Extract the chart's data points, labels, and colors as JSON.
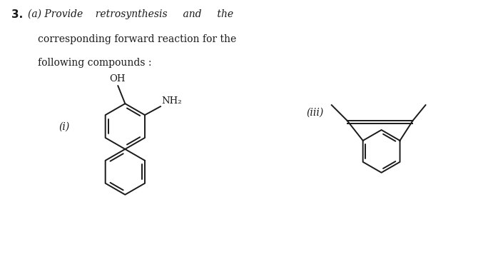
{
  "bg_color": "#ffffff",
  "text_color": "#1a1a1a",
  "line_color": "#1a1a1a",
  "label_i": "(i)",
  "label_iii": "(iii)",
  "oh_label": "OH",
  "nh2_label": "NH₂"
}
